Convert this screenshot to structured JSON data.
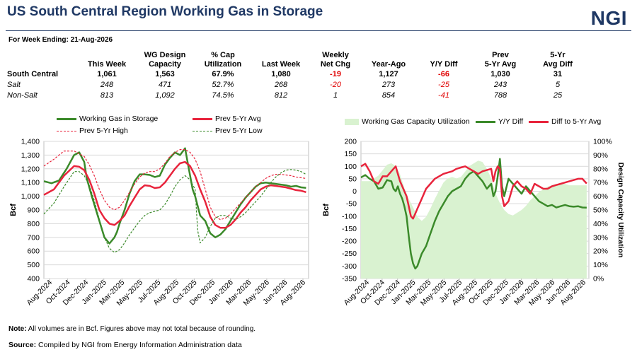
{
  "header": {
    "title": "US South Central Region Working Gas in Storage",
    "logo": "NGI",
    "week_label": "For Week Ending:  21-Aug-2026"
  },
  "table": {
    "headers": [
      [
        "",
        ""
      ],
      [
        "",
        "This Week"
      ],
      [
        "WG Design",
        "Capacity"
      ],
      [
        "% Cap",
        "Utilization"
      ],
      [
        "",
        "Last Week"
      ],
      [
        "Weekly",
        "Net Chg"
      ],
      [
        "",
        "Year-Ago"
      ],
      [
        "",
        "Y/Y Diff"
      ],
      [
        "Prev",
        "5-Yr Avg"
      ],
      [
        "5-Yr",
        "Avg Diff"
      ]
    ],
    "rows": [
      {
        "style": "bold",
        "cells": [
          "South Central",
          "1,061",
          "1,563",
          "67.9%",
          "1,080",
          "-19",
          "1,127",
          "-66",
          "1,030",
          "31"
        ],
        "neg": [
          5,
          7
        ]
      },
      {
        "style": "ital",
        "cells": [
          "Salt",
          "248",
          "471",
          "52.7%",
          "268",
          "-20",
          "273",
          "-25",
          "243",
          "5"
        ],
        "neg": [
          5,
          7
        ]
      },
      {
        "style": "ital",
        "cells": [
          "Non-Salt",
          "813",
          "1,092",
          "74.5%",
          "812",
          "1",
          "854",
          "-41",
          "788",
          "25"
        ],
        "neg": [
          7
        ]
      }
    ]
  },
  "colors": {
    "green": "#3b8a2a",
    "red": "#e8243c",
    "fill": "#d9f2d0",
    "title": "#1f3864"
  },
  "left_legend": {
    "wg": "Working Gas in Storage",
    "avg": "Prev 5-Yr Avg",
    "high": "Prev 5-Yr High",
    "low": "Prev 5-Yr Low"
  },
  "right_legend": {
    "util": "Working Gas Capacity Utilization",
    "yy": "Y/Y Diff",
    "diff": "Diff to 5-Yr Avg"
  },
  "footer": {
    "note_label": "Note:",
    "note_text": " All volumes  are in Bcf. Figures above may not total  because of rounding.",
    "source_label": "Source:",
    "source_text": " Compiled  by NGI from Energy Information  Administration data"
  },
  "chart_data": [
    {
      "type": "line",
      "ylabel": "Bcf",
      "ylim": [
        400,
        1400
      ],
      "yticks": [
        "400",
        "500",
        "600",
        "700",
        "800",
        "900",
        "1,000",
        "1,100",
        "1,200",
        "1,300",
        "1,400"
      ],
      "xticks": [
        "Aug-2024",
        "Oct-2024",
        "Dec-2024",
        "Jan-2025",
        "Mar-2025",
        "May-2025",
        "Jul-2025",
        "Aug-2025",
        "Oct-2025",
        "Dec-2025",
        "Jan-2026",
        "Mar-2026",
        "May-2026",
        "Jun-2026",
        "Aug-2026"
      ],
      "grid": true,
      "legend": "top",
      "xrange": [
        0,
        105
      ],
      "series": [
        {
          "name": "Working Gas in Storage",
          "style": "solid-green",
          "x": [
            0,
            3,
            6,
            9,
            12,
            14,
            16,
            17,
            19,
            21,
            22,
            24,
            26,
            28,
            29,
            30,
            32,
            34,
            36,
            38,
            40,
            42,
            44,
            46,
            48,
            50,
            51,
            52,
            54,
            56,
            57,
            58,
            59,
            60,
            62,
            63,
            64,
            66,
            68,
            70,
            72,
            74,
            76,
            78,
            80,
            82,
            84,
            86,
            88,
            90,
            92,
            94,
            96,
            98,
            100,
            102,
            104
          ],
          "values": [
            1110,
            1095,
            1115,
            1200,
            1300,
            1320,
            1250,
            1130,
            1000,
            880,
            820,
            700,
            655,
            700,
            740,
            800,
            900,
            1020,
            1110,
            1160,
            1160,
            1155,
            1140,
            1150,
            1230,
            1280,
            1300,
            1320,
            1300,
            1350,
            1250,
            1150,
            1050,
            1000,
            860,
            840,
            820,
            730,
            700,
            720,
            760,
            820,
            880,
            940,
            990,
            1030,
            1070,
            1095,
            1100,
            1095,
            1090,
            1085,
            1080,
            1070,
            1075,
            1065,
            1061
          ]
        },
        {
          "name": "Prev 5-Yr Avg",
          "style": "solid-red",
          "x": [
            0,
            4,
            8,
            12,
            14,
            16,
            18,
            20,
            22,
            24,
            26,
            28,
            30,
            32,
            34,
            36,
            38,
            40,
            42,
            44,
            46,
            48,
            50,
            52,
            54,
            56,
            58,
            60,
            62,
            64,
            66,
            68,
            70,
            72,
            74,
            76,
            78,
            80,
            82,
            84,
            86,
            88,
            90,
            92,
            94,
            96,
            98,
            100,
            102,
            104
          ],
          "values": [
            1010,
            1050,
            1150,
            1220,
            1215,
            1190,
            1120,
            1020,
            900,
            840,
            800,
            790,
            820,
            860,
            930,
            990,
            1050,
            1080,
            1075,
            1060,
            1065,
            1100,
            1150,
            1200,
            1240,
            1250,
            1220,
            1150,
            1050,
            960,
            850,
            790,
            770,
            770,
            790,
            830,
            880,
            920,
            970,
            1010,
            1050,
            1070,
            1080,
            1075,
            1070,
            1065,
            1055,
            1045,
            1040,
            1030
          ]
        },
        {
          "name": "Prev 5-Yr High",
          "style": "dashed-red",
          "x": [
            0,
            4,
            8,
            12,
            14,
            16,
            18,
            20,
            22,
            24,
            26,
            28,
            30,
            32,
            34,
            36,
            38,
            40,
            42,
            44,
            46,
            48,
            50,
            52,
            54,
            56,
            58,
            60,
            62,
            64,
            66,
            68,
            70,
            72,
            74,
            76,
            78,
            80,
            82,
            84,
            86,
            88,
            90,
            92,
            94,
            96,
            98,
            100,
            102,
            104
          ],
          "values": [
            1220,
            1270,
            1330,
            1330,
            1310,
            1290,
            1230,
            1150,
            1050,
            970,
            920,
            900,
            920,
            970,
            1030,
            1090,
            1140,
            1170,
            1180,
            1180,
            1200,
            1240,
            1290,
            1320,
            1340,
            1340,
            1320,
            1270,
            1180,
            1050,
            920,
            850,
            830,
            840,
            870,
            910,
            950,
            990,
            1030,
            1070,
            1100,
            1130,
            1150,
            1160,
            1160,
            1155,
            1150,
            1140,
            1135,
            1130
          ]
        },
        {
          "name": "Prev 5-Yr Low",
          "style": "dashed-green",
          "x": [
            0,
            4,
            8,
            12,
            14,
            16,
            18,
            20,
            22,
            24,
            26,
            28,
            30,
            32,
            34,
            36,
            38,
            40,
            42,
            44,
            46,
            48,
            50,
            52,
            54,
            56,
            58,
            60,
            61,
            62,
            64,
            66,
            68,
            70,
            72,
            74,
            76,
            78,
            80,
            82,
            84,
            86,
            88,
            90,
            92,
            94,
            96,
            98,
            100,
            102,
            104
          ],
          "values": [
            870,
            950,
            1070,
            1180,
            1180,
            1150,
            1080,
            970,
            830,
            700,
            620,
            590,
            610,
            660,
            720,
            770,
            820,
            860,
            880,
            890,
            900,
            940,
            1000,
            1070,
            1120,
            1150,
            1120,
            1050,
            750,
            660,
            700,
            780,
            840,
            860,
            860,
            840,
            830,
            850,
            880,
            920,
            960,
            1000,
            1050,
            1100,
            1140,
            1170,
            1190,
            1195,
            1190,
            1180,
            1160
          ]
        }
      ]
    },
    {
      "type": "line",
      "ylabel": "Bcf",
      "y2label": "Design Capacity Utilization",
      "ylim": [
        -350,
        200
      ],
      "y2lim": [
        0,
        100
      ],
      "yticks": [
        "200",
        "150",
        "100",
        "50",
        "0",
        "-50",
        "-100",
        "-150",
        "-200",
        "-250",
        "-300",
        "-350"
      ],
      "y2ticks": [
        "100%",
        "90%",
        "80%",
        "70%",
        "60%",
        "50%",
        "40%",
        "30%",
        "20%",
        "10%",
        "0%"
      ],
      "xticks": [
        "Aug-2024",
        "Oct-2024",
        "Dec-2024",
        "Jan-2025",
        "Mar-2025",
        "May-2025",
        "Jul-2025",
        "Aug-2025",
        "Oct-2025",
        "Dec-2025",
        "Jan-2026",
        "Mar-2026",
        "May-2026",
        "Jun-2026",
        "Aug-2026"
      ],
      "grid": true,
      "legend": "top",
      "xrange": [
        0,
        105
      ],
      "series": [
        {
          "name": "Working Gas Capacity Utilization",
          "style": "area-fill",
          "axis": "right",
          "x": [
            0,
            4,
            8,
            12,
            14,
            16,
            18,
            20,
            22,
            24,
            26,
            28,
            30,
            32,
            34,
            36,
            38,
            40,
            42,
            44,
            46,
            48,
            50,
            52,
            54,
            56,
            58,
            60,
            62,
            64,
            66,
            68,
            70,
            72,
            74,
            76,
            78,
            80,
            82,
            84,
            86,
            88,
            90,
            92,
            94,
            96,
            98,
            100,
            102,
            104
          ],
          "values": [
            71,
            71,
            75,
            83,
            84,
            82,
            76,
            66,
            58,
            52,
            45,
            42,
            45,
            51,
            58,
            64,
            70,
            73,
            74,
            73,
            74,
            78,
            82,
            84,
            86,
            85,
            80,
            73,
            62,
            55,
            50,
            47,
            46,
            48,
            50,
            53,
            57,
            60,
            63,
            65,
            67,
            68,
            69,
            69,
            69,
            68,
            68,
            68,
            68,
            68
          ]
        },
        {
          "name": "Y/Y Diff",
          "style": "solid-green",
          "axis": "left",
          "x": [
            0,
            2,
            4,
            6,
            8,
            10,
            12,
            14,
            15,
            16,
            17,
            18,
            19,
            20,
            21,
            22,
            23,
            24,
            25,
            26,
            28,
            30,
            32,
            34,
            36,
            38,
            40,
            42,
            44,
            46,
            48,
            50,
            52,
            54,
            56,
            58,
            60,
            61,
            62,
            63,
            64,
            65,
            66,
            68,
            70,
            72,
            74,
            76,
            78,
            80,
            82,
            84,
            86,
            88,
            90,
            92,
            94,
            96,
            98,
            100,
            102,
            104
          ],
          "values": [
            55,
            65,
            50,
            40,
            10,
            15,
            45,
            40,
            10,
            0,
            20,
            -10,
            -30,
            -60,
            -100,
            -180,
            -250,
            -290,
            -310,
            -300,
            -250,
            -220,
            -170,
            -120,
            -80,
            -50,
            -20,
            0,
            10,
            20,
            50,
            70,
            80,
            60,
            40,
            10,
            30,
            -20,
            0,
            60,
            130,
            20,
            -20,
            50,
            30,
            10,
            -10,
            20,
            0,
            -20,
            -40,
            -50,
            -60,
            -55,
            -65,
            -60,
            -55,
            -60,
            -62,
            -60,
            -65,
            -66
          ]
        },
        {
          "name": "Diff to 5-Yr Avg",
          "style": "solid-red",
          "axis": "left",
          "x": [
            0,
            2,
            4,
            6,
            8,
            10,
            12,
            14,
            16,
            17,
            18,
            19,
            20,
            21,
            22,
            23,
            24,
            25,
            26,
            28,
            30,
            32,
            34,
            36,
            38,
            40,
            42,
            44,
            46,
            48,
            50,
            52,
            54,
            56,
            58,
            60,
            61,
            62,
            63,
            64,
            65,
            66,
            68,
            70,
            72,
            74,
            76,
            78,
            80,
            82,
            84,
            86,
            88,
            90,
            92,
            94,
            96,
            98,
            100,
            102,
            104
          ],
          "values": [
            100,
            110,
            80,
            40,
            30,
            60,
            60,
            80,
            100,
            70,
            40,
            20,
            0,
            -20,
            -60,
            -100,
            -110,
            -90,
            -70,
            -30,
            10,
            30,
            50,
            60,
            70,
            75,
            80,
            90,
            95,
            100,
            90,
            80,
            70,
            80,
            85,
            90,
            40,
            80,
            100,
            90,
            -20,
            -60,
            -40,
            20,
            40,
            20,
            10,
            -10,
            30,
            20,
            10,
            10,
            20,
            25,
            30,
            35,
            40,
            45,
            50,
            50,
            31
          ]
        }
      ]
    }
  ]
}
